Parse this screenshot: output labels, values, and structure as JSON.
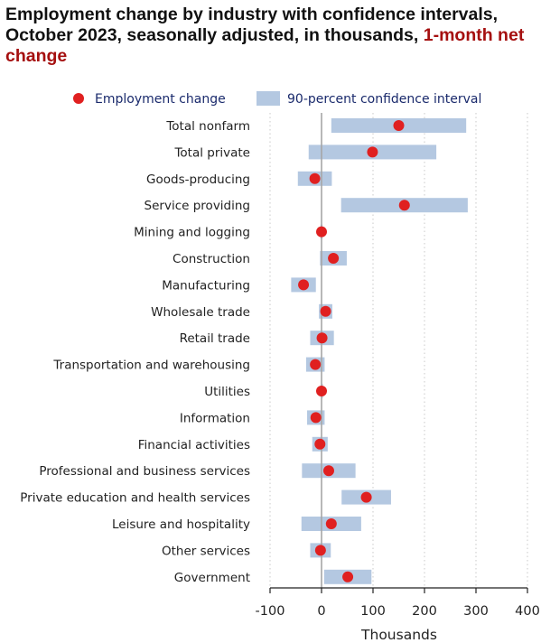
{
  "title": {
    "main": "Employment change by industry with confidence intervals, October 2023, seasonally adjusted, in thousands,",
    "accent": "1-month net change"
  },
  "chart_data": {
    "type": "dot-interval",
    "legend": {
      "point_label": "Employment change",
      "interval_label": "90-percent confidence interval",
      "placement": "top"
    },
    "xlabel": "Thousands",
    "xlim": [
      -100,
      400
    ],
    "xticks": [
      -100,
      0,
      100,
      200,
      300,
      400
    ],
    "grid": "vertical dotted",
    "colors": {
      "point": "#e02020",
      "interval": "#b4c8e1",
      "zero_line": "#a6a6a6",
      "grid": "#c8c8c8"
    },
    "categories": [
      "Total nonfarm",
      "Total private",
      "Goods-producing",
      "Service providing",
      "Mining and logging",
      "Construction",
      "Manufacturing",
      "Wholesale trade",
      "Retail trade",
      "Transportation and warehousing",
      "Utilities",
      "Information",
      "Financial activities",
      "Professional and business services",
      "Private education and health services",
      "Leisure and hospitality",
      "Other services",
      "Government"
    ],
    "values": [
      150,
      99,
      -13,
      161,
      0,
      23,
      -35,
      8,
      1,
      -12,
      0,
      -11,
      -3,
      14,
      87,
      19,
      -2,
      51
    ],
    "ci_low": [
      19,
      -25,
      -46,
      38,
      -2,
      -3,
      -59,
      -5,
      -22,
      -30,
      -1,
      -28,
      -18,
      -38,
      39,
      -39,
      -22,
      5
    ],
    "ci_high": [
      281,
      223,
      20,
      284,
      2,
      49,
      -11,
      21,
      24,
      6,
      1,
      6,
      12,
      66,
      135,
      77,
      18,
      97
    ]
  }
}
